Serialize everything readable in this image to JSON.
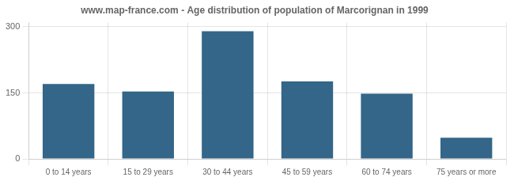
{
  "chart_data": {
    "type": "bar",
    "title": "www.map-france.com - Age distribution of population of Marcorignan in 1999",
    "categories": [
      "0 to 14 years",
      "15 to 29 years",
      "30 to 44 years",
      "45 to 59 years",
      "60 to 74 years",
      "75 years or more"
    ],
    "values": [
      170,
      153,
      290,
      176,
      148,
      48
    ],
    "color": "#336688",
    "ylim": [
      0,
      310
    ],
    "yticks": [
      0,
      150,
      300
    ],
    "grid": true
  }
}
